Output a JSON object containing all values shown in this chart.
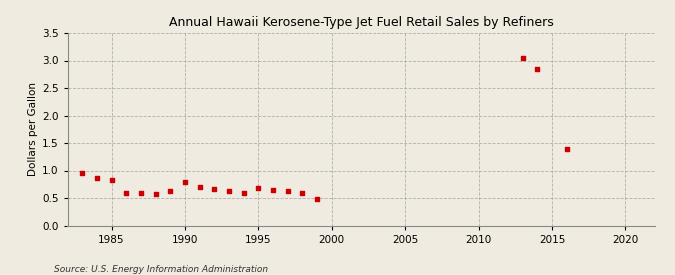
{
  "title": "Annual Hawaii Kerosene-Type Jet Fuel Retail Sales by Refiners",
  "ylabel": "Dollars per Gallon",
  "source": "Source: U.S. Energy Information Administration",
  "background_color": "#f0ebe0",
  "plot_background_color": "#f0ebe0",
  "marker_color": "#cc0000",
  "xlim": [
    1982,
    2022
  ],
  "ylim": [
    0.0,
    3.5
  ],
  "xticks": [
    1985,
    1990,
    1995,
    2000,
    2005,
    2010,
    2015,
    2020
  ],
  "yticks": [
    0.0,
    0.5,
    1.0,
    1.5,
    2.0,
    2.5,
    3.0,
    3.5
  ],
  "data": {
    "years": [
      1983,
      1984,
      1985,
      1986,
      1987,
      1988,
      1989,
      1990,
      1991,
      1992,
      1993,
      1994,
      1995,
      1996,
      1997,
      1998,
      1999,
      2013,
      2014,
      2016
    ],
    "values": [
      0.95,
      0.87,
      0.83,
      0.6,
      0.6,
      0.57,
      0.63,
      0.8,
      0.7,
      0.67,
      0.63,
      0.6,
      0.68,
      0.65,
      0.62,
      0.6,
      0.48,
      3.05,
      2.84,
      1.4
    ]
  }
}
